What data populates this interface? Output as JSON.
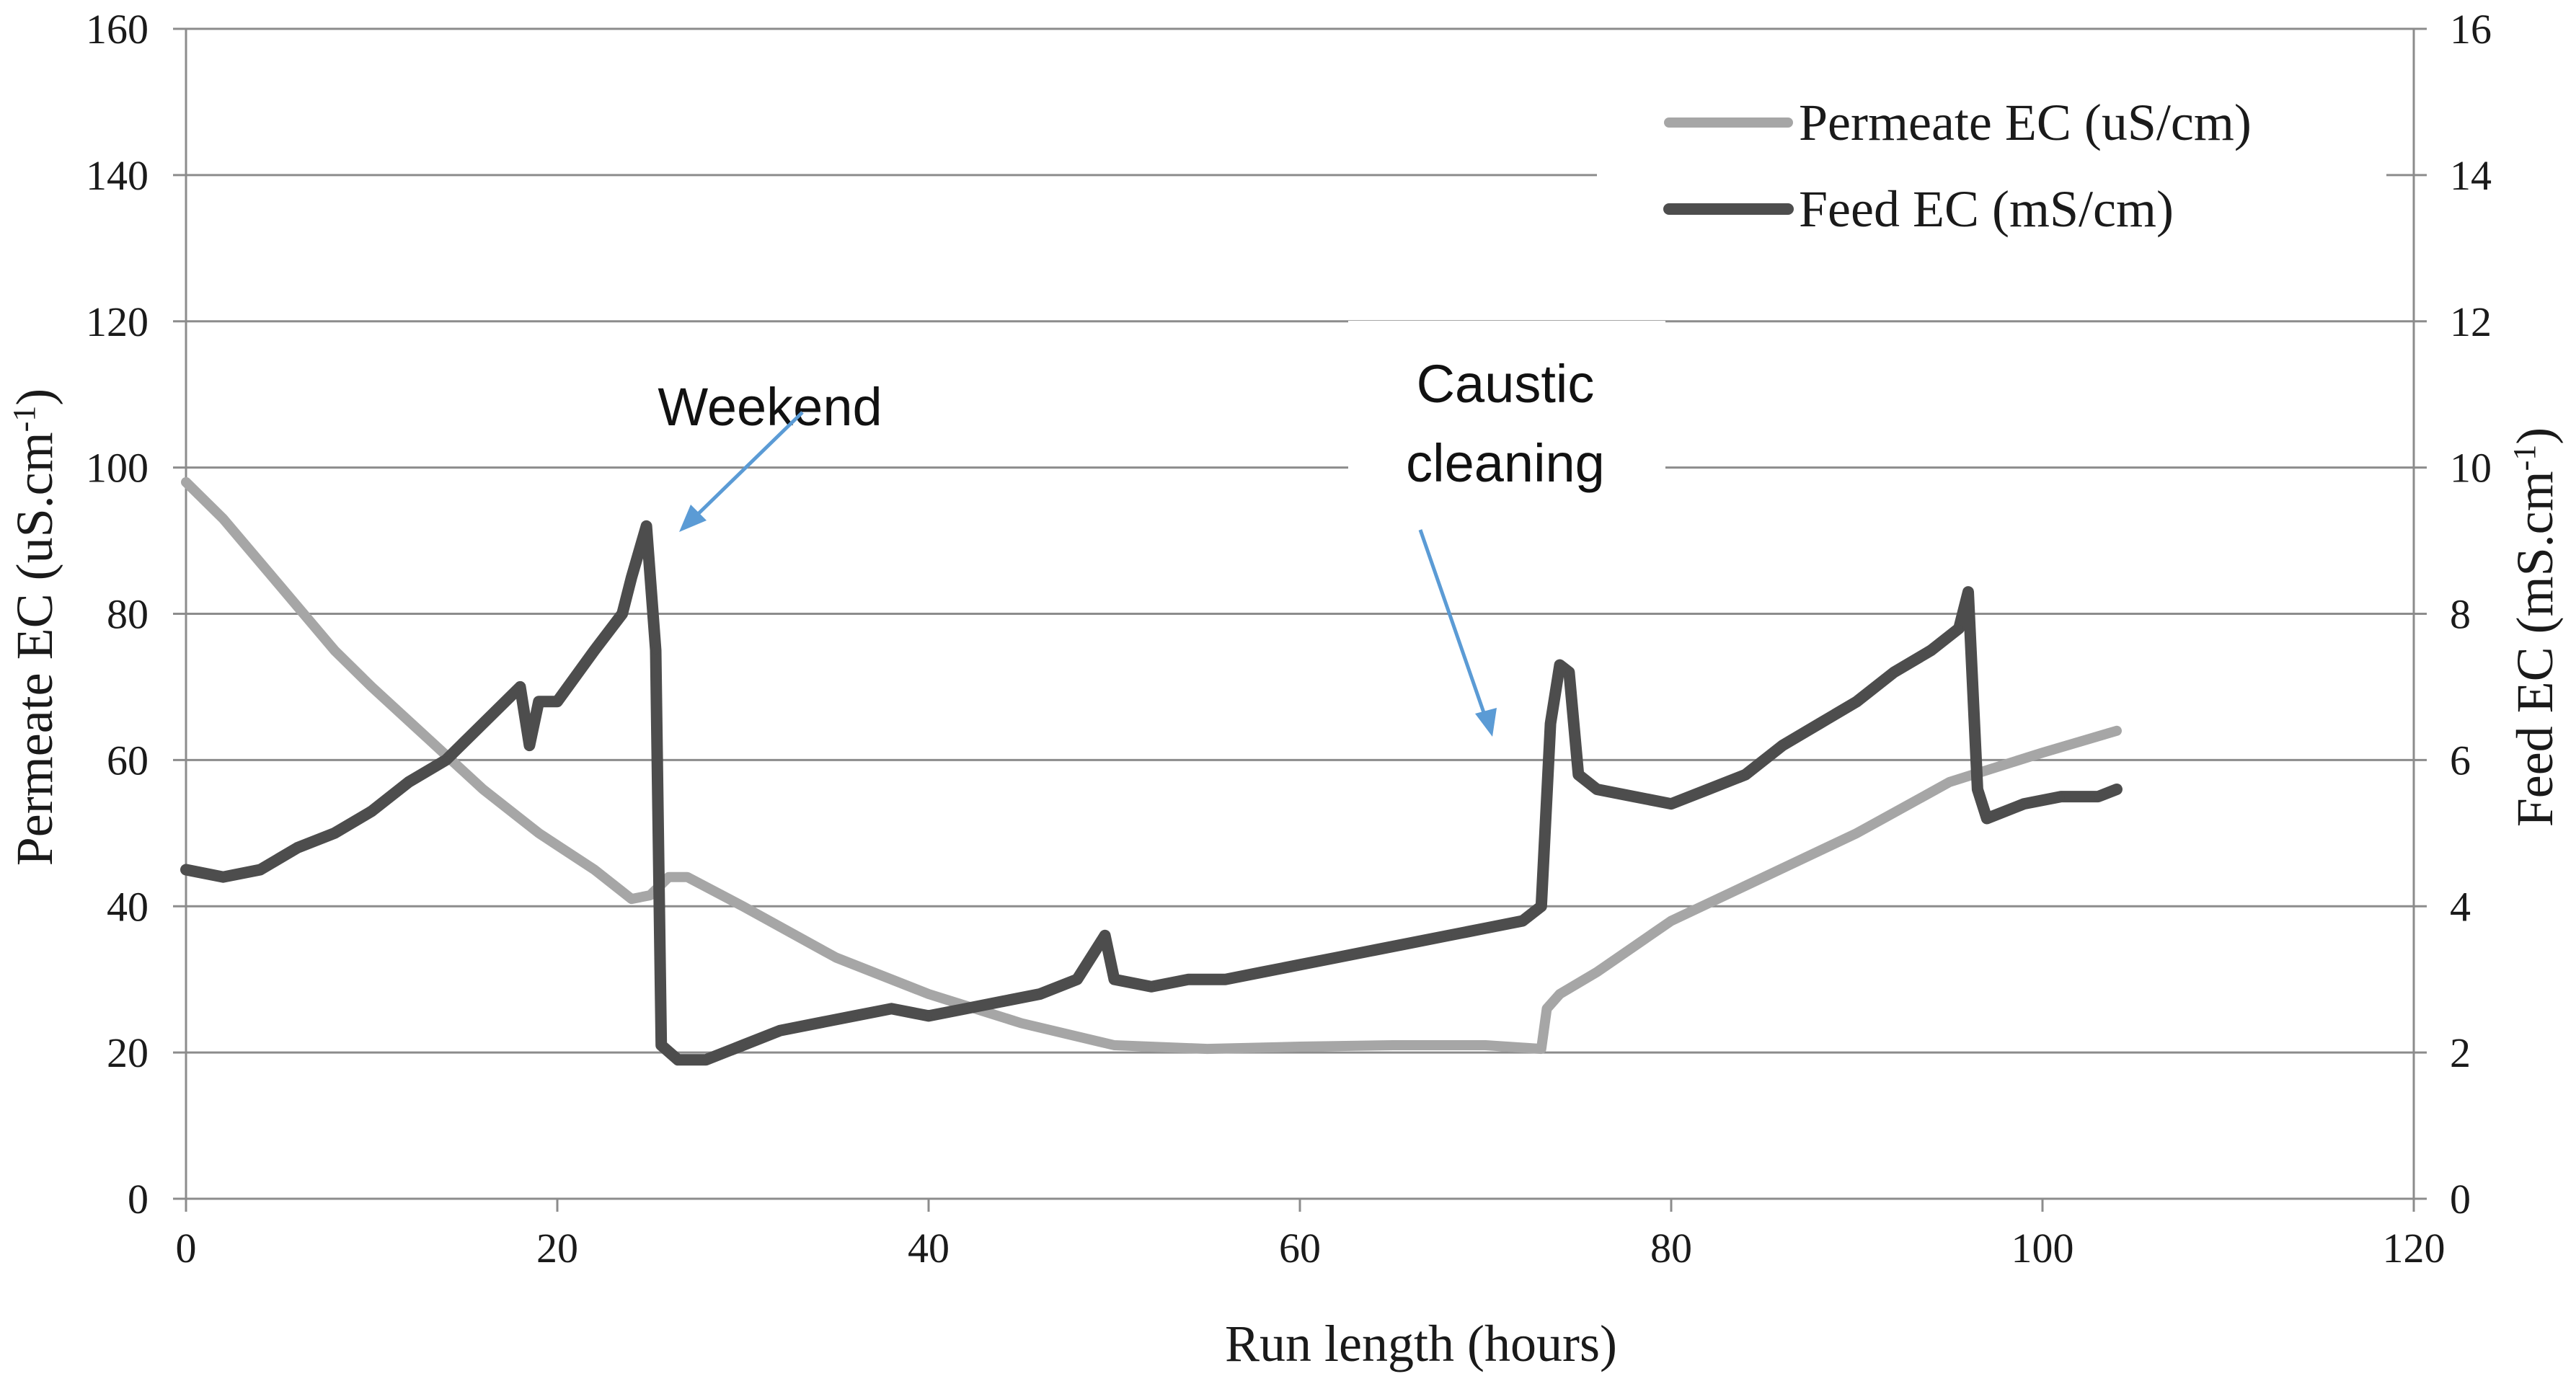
{
  "chart_data": {
    "type": "line",
    "title": "",
    "xlabel": "Run length (hours)",
    "ylabel_left": "Permeate EC (uS.cm",
    "ylabel_left_sup": "-1",
    "ylabel_left_close": ")",
    "ylabel_right": "Feed EC (mS.cm",
    "ylabel_right_sup": "-1",
    "ylabel_right_close": ")",
    "xlim": [
      0,
      120
    ],
    "ylim_left": [
      0,
      160
    ],
    "ylim_right": [
      0,
      16
    ],
    "xticks": [
      "0",
      "20",
      "40",
      "60",
      "80",
      "100",
      "120"
    ],
    "yticks_left": [
      "0",
      "20",
      "40",
      "60",
      "80",
      "100",
      "120",
      "140",
      "160"
    ],
    "yticks_right": [
      "0",
      "2",
      "4",
      "6",
      "8",
      "10",
      "12",
      "14",
      "16"
    ],
    "grid": "horizontal",
    "legend_position": "top-right",
    "series": [
      {
        "name": "Permeate EC (uS/cm)",
        "axis": "left",
        "color": "#a6a6a6",
        "x": [
          0,
          2,
          5,
          8,
          10,
          13,
          16,
          19,
          22,
          24,
          25,
          26,
          27,
          30,
          35,
          40,
          45,
          50,
          55,
          60,
          65,
          70,
          73,
          73.3,
          74,
          76,
          80,
          85,
          90,
          95,
          100,
          104
        ],
        "y": [
          98,
          93,
          84,
          75,
          70,
          63,
          56,
          50,
          45,
          41,
          41.5,
          44,
          44,
          40,
          33,
          28,
          24,
          21,
          20.5,
          20.8,
          21,
          21,
          20.5,
          26,
          28,
          31,
          38,
          44,
          50,
          57,
          61,
          64
        ]
      },
      {
        "name": "Feed EC (mS/cm)",
        "axis": "right",
        "color": "#4d4d4d",
        "x": [
          0,
          2,
          4,
          6,
          8,
          10,
          12,
          14,
          16,
          18,
          18.5,
          19,
          20,
          22,
          23.5,
          24,
          24.8,
          25.3,
          25.6,
          26.5,
          28,
          30,
          32,
          34,
          36,
          38,
          40,
          42,
          44,
          46,
          48,
          49.5,
          50,
          52,
          54,
          56,
          58,
          60,
          62,
          64,
          66,
          68,
          70,
          72,
          73,
          73.5,
          74,
          74.5,
          75,
          76,
          78,
          80,
          82,
          84,
          86,
          88,
          90,
          92,
          94,
          95.5,
          96,
          96.5,
          97,
          99,
          101,
          103,
          104
        ],
        "y": [
          4.5,
          4.4,
          4.5,
          4.8,
          5.0,
          5.3,
          5.7,
          6.0,
          6.5,
          7.0,
          6.2,
          6.8,
          6.8,
          7.5,
          8.0,
          8.5,
          9.2,
          7.5,
          2.1,
          1.9,
          1.9,
          2.1,
          2.3,
          2.4,
          2.5,
          2.6,
          2.5,
          2.6,
          2.7,
          2.8,
          3.0,
          3.6,
          3.0,
          2.9,
          3.0,
          3.0,
          3.1,
          3.2,
          3.3,
          3.4,
          3.5,
          3.6,
          3.7,
          3.8,
          4.0,
          6.5,
          7.3,
          7.2,
          5.8,
          5.6,
          5.5,
          5.4,
          5.6,
          5.8,
          6.2,
          6.5,
          6.8,
          7.2,
          7.5,
          7.8,
          8.3,
          5.6,
          5.2,
          5.4,
          5.5,
          5.5,
          5.6
        ]
      }
    ],
    "annotations": [
      {
        "lines": [
          "Weekend"
        ],
        "color": "#5b9bd5"
      },
      {
        "lines": [
          "Caustic",
          "cleaning"
        ],
        "color": "#5b9bd5"
      }
    ]
  }
}
